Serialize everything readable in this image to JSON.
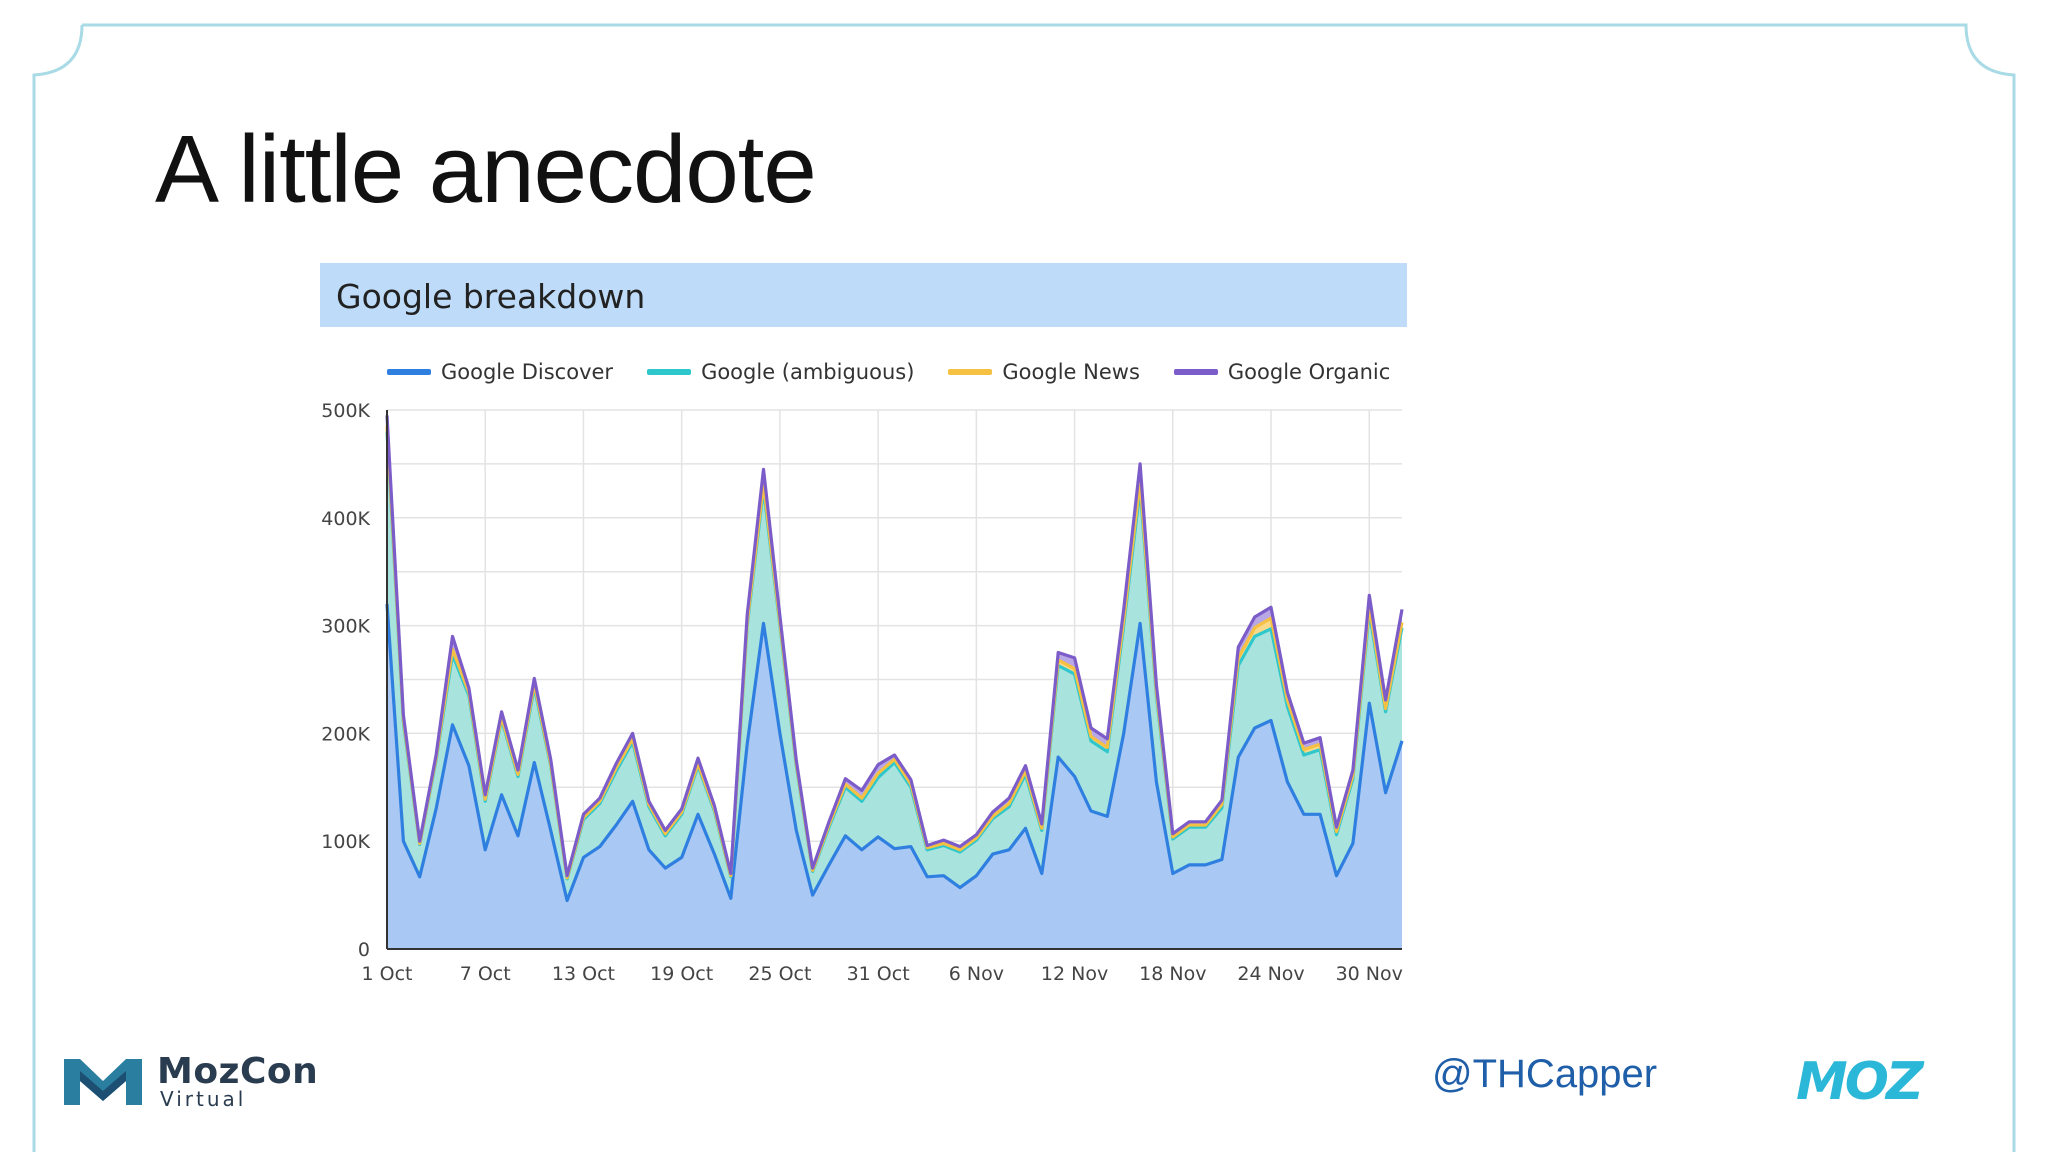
{
  "slide": {
    "title": "A little anecdote",
    "twitter_handle": "@THCapper",
    "brand": {
      "mozcon_word": "MozCon",
      "mozcon_sub": "Virtual",
      "moz_word": "MOZ"
    },
    "colors": {
      "frame": "#a8dbe6",
      "header": "#bedcfa",
      "moz": "#2bb8d8",
      "handle": "#1f5ea8"
    }
  },
  "chart_data": {
    "type": "area",
    "stacked": true,
    "title": "Google breakdown",
    "xlabel": "",
    "ylabel": "",
    "ylim": [
      0,
      500000
    ],
    "y_ticks": [
      0,
      100000,
      200000,
      300000,
      400000,
      500000
    ],
    "y_tick_labels": [
      "0",
      "100K",
      "200K",
      "300K",
      "400K",
      "500K"
    ],
    "x_tick_labels": [
      "1 Oct",
      "7 Oct",
      "13 Oct",
      "19 Oct",
      "25 Oct",
      "31 Oct",
      "6 Nov",
      "12 Nov",
      "18 Nov",
      "24 Nov",
      "30 Nov"
    ],
    "x_tick_index": [
      0,
      6,
      12,
      18,
      24,
      30,
      36,
      42,
      48,
      54,
      60
    ],
    "legend_position": "top",
    "series": [
      {
        "name": "Google Discover",
        "color": "#2f7fe0",
        "fill": "#a9c8f3",
        "values": [
          320000,
          100000,
          67000,
          130000,
          208000,
          170000,
          92000,
          143000,
          105000,
          173000,
          110000,
          45000,
          85000,
          95000,
          115000,
          137000,
          92000,
          75000,
          85000,
          125000,
          88000,
          47000,
          190000,
          302000,
          200000,
          110000,
          50000,
          78000,
          105000,
          92000,
          104000,
          93000,
          95000,
          67000,
          68000,
          57000,
          68000,
          88000,
          92000,
          112000,
          70000,
          178000,
          160000,
          128000,
          123000,
          200000,
          302000,
          155000,
          70000,
          78000,
          78000,
          83000,
          178000,
          205000,
          212000,
          155000,
          125000,
          125000,
          68000,
          98000,
          228000,
          145000,
          193000
        ]
      },
      {
        "name": "Google (ambiguous)",
        "color": "#2ec8cc",
        "fill": "#a8e3de",
        "values": [
          160000,
          110000,
          30000,
          45000,
          65000,
          65000,
          45000,
          70000,
          55000,
          70000,
          60000,
          20000,
          35000,
          40000,
          50000,
          55000,
          40000,
          30000,
          40000,
          45000,
          40000,
          20000,
          110000,
          125000,
          100000,
          60000,
          22000,
          35000,
          45000,
          45000,
          55000,
          80000,
          55000,
          25000,
          28000,
          33000,
          33000,
          33000,
          40000,
          50000,
          40000,
          85000,
          95000,
          65000,
          60000,
          100000,
          125000,
          80000,
          32000,
          35000,
          35000,
          48000,
          85000,
          85000,
          85000,
          70000,
          55000,
          60000,
          38000,
          60000,
          85000,
          75000,
          105000
        ]
      },
      {
        "name": "Google News",
        "color": "#f6c143",
        "fill": "#f9d98a",
        "values": [
          5000,
          3000,
          1000,
          2000,
          5000,
          3000,
          2000,
          2000,
          2000,
          3000,
          2000,
          1000,
          2000,
          2000,
          3000,
          3000,
          2000,
          2000,
          2000,
          2000,
          2000,
          1000,
          3000,
          5000,
          3000,
          2000,
          1000,
          2000,
          3000,
          3000,
          4000,
          3000,
          3000,
          2000,
          2000,
          2000,
          2000,
          2000,
          3000,
          3000,
          2000,
          5000,
          5000,
          4000,
          4000,
          5000,
          7000,
          4000,
          2000,
          2000,
          2000,
          3000,
          7000,
          8000,
          10000,
          6000,
          5000,
          5000,
          3000,
          3000,
          5000,
          3000,
          5000
        ]
      },
      {
        "name": "Google Organic",
        "color": "#7b5cc8",
        "fill": "#b9a8e6",
        "values": [
          10000,
          4000,
          2000,
          3000,
          12000,
          4000,
          4000,
          5000,
          4000,
          5000,
          4000,
          2000,
          3000,
          3000,
          4000,
          5000,
          3000,
          3000,
          3000,
          5000,
          3000,
          2000,
          7000,
          13000,
          6000,
          3000,
          2000,
          3000,
          5000,
          7000,
          8000,
          4000,
          4000,
          2000,
          3000,
          3000,
          3000,
          4000,
          5000,
          5000,
          4000,
          7000,
          10000,
          8000,
          8000,
          10000,
          16000,
          6000,
          3000,
          3000,
          3000,
          4000,
          10000,
          10000,
          10000,
          7000,
          6000,
          6000,
          4000,
          5000,
          10000,
          8000,
          12000
        ]
      }
    ]
  }
}
